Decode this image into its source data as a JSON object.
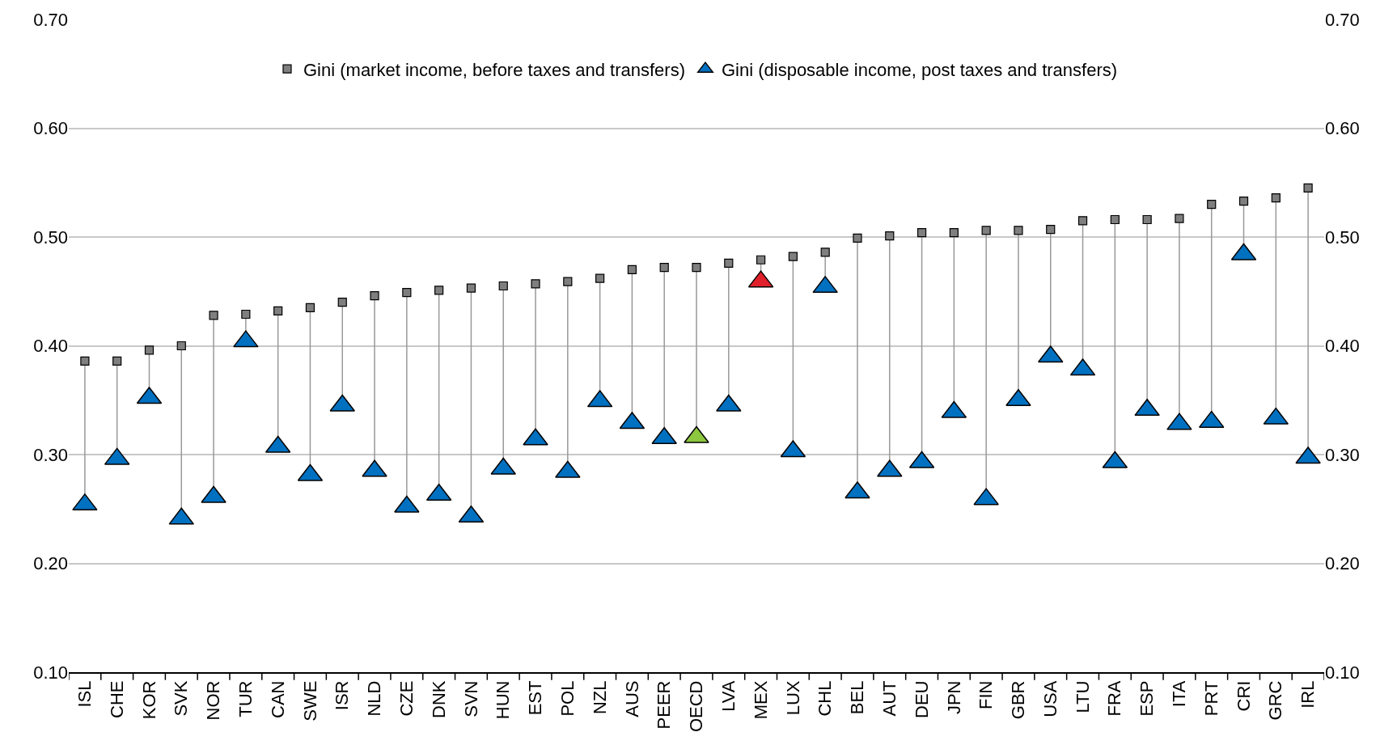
{
  "chart_data": {
    "type": "scatter",
    "categories": [
      "ISL",
      "CHE",
      "KOR",
      "SVK",
      "NOR",
      "TUR",
      "CAN",
      "SWE",
      "ISR",
      "NLD",
      "CZE",
      "DNK",
      "SVN",
      "HUN",
      "EST",
      "POL",
      "NZL",
      "AUS",
      "PEER",
      "OECD",
      "LVA",
      "MEX",
      "LUX",
      "CHL",
      "BEL",
      "AUT",
      "DEU",
      "JPN",
      "FIN",
      "GBR",
      "USA",
      "LTU",
      "FRA",
      "ESP",
      "ITA",
      "PRT",
      "CRI",
      "GRC",
      "IRL"
    ],
    "series": [
      {
        "name": "Gini (market income, before taxes and transfers)",
        "color": "#7f7f7f",
        "marker": "square",
        "values": [
          0.386,
          0.386,
          0.396,
          0.4,
          0.428,
          0.429,
          0.432,
          0.435,
          0.44,
          0.446,
          0.449,
          0.451,
          0.453,
          0.455,
          0.457,
          0.459,
          0.462,
          0.47,
          0.472,
          0.472,
          0.476,
          0.479,
          0.482,
          0.486,
          0.499,
          0.501,
          0.504,
          0.504,
          0.506,
          0.506,
          0.507,
          0.515,
          0.516,
          0.516,
          0.517,
          0.53,
          0.533,
          0.536,
          0.545
        ]
      },
      {
        "name": "Gini (disposable income, post taxes and transfers)",
        "color": "#0070c0",
        "marker": "triangle",
        "colors": [
          "#0070c0",
          "#0070c0",
          "#0070c0",
          "#0070c0",
          "#0070c0",
          "#0070c0",
          "#0070c0",
          "#0070c0",
          "#0070c0",
          "#0070c0",
          "#0070c0",
          "#0070c0",
          "#0070c0",
          "#0070c0",
          "#0070c0",
          "#0070c0",
          "#0070c0",
          "#0070c0",
          "#0070c0",
          "#8dc63f",
          "#0070c0",
          "#e0202a",
          "#0070c0",
          "#0070c0",
          "#0070c0",
          "#0070c0",
          "#0070c0",
          "#0070c0",
          "#0070c0",
          "#0070c0",
          "#0070c0",
          "#0070c0",
          "#0070c0",
          "#0070c0",
          "#0070c0",
          "#0070c0",
          "#0070c0",
          "#0070c0",
          "#0070c0"
        ],
        "values": [
          0.254,
          0.296,
          0.352,
          0.241,
          0.261,
          0.404,
          0.307,
          0.281,
          0.345,
          0.285,
          0.252,
          0.263,
          0.243,
          0.287,
          0.314,
          0.284,
          0.349,
          0.329,
          0.315,
          0.316,
          0.345,
          0.459,
          0.303,
          0.454,
          0.265,
          0.285,
          0.293,
          0.339,
          0.259,
          0.35,
          0.39,
          0.378,
          0.293,
          0.341,
          0.328,
          0.33,
          0.484,
          0.333,
          0.297
        ]
      }
    ],
    "ylim": [
      0.1,
      0.7
    ],
    "yticks": [
      {
        "value": 0.1,
        "label": "0.10"
      },
      {
        "value": 0.2,
        "label": "0.20"
      },
      {
        "value": 0.3,
        "label": "0.30"
      },
      {
        "value": 0.4,
        "label": "0.40"
      },
      {
        "value": 0.5,
        "label": "0.50"
      },
      {
        "value": 0.6,
        "label": "0.60"
      },
      {
        "value": 0.7,
        "label": "0.70"
      }
    ],
    "y2lim": [
      0.1,
      0.7
    ],
    "y2ticks": [
      {
        "value": 0.1,
        "label": "0.10"
      },
      {
        "value": 0.2,
        "label": "0.20"
      },
      {
        "value": 0.3,
        "label": "0.30"
      },
      {
        "value": 0.4,
        "label": "0.40"
      },
      {
        "value": 0.5,
        "label": "0.50"
      },
      {
        "value": 0.6,
        "label": "0.60"
      },
      {
        "value": 0.7,
        "label": "0.70"
      }
    ],
    "grid": "y",
    "legend": "top"
  }
}
